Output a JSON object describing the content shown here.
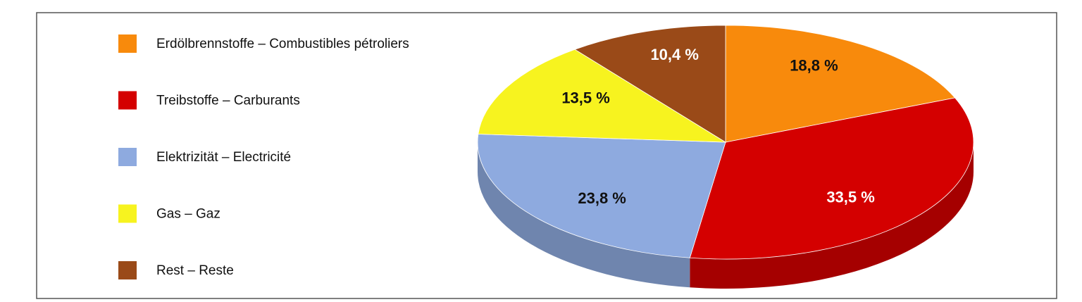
{
  "chart_data": {
    "type": "pie",
    "categories": [
      "Erdölbrennstoffe – Combustibles pétroliers",
      "Treibstoffe – Carburants",
      "Elektrizität – Electricité",
      "Gas – Gaz",
      "Rest – Reste"
    ],
    "values": [
      18.8,
      33.5,
      23.8,
      13.5,
      10.4
    ],
    "value_labels": [
      "18,8 %",
      "33,5 %",
      "23,8 %",
      "13,5 %",
      "10,4 %"
    ],
    "colors": [
      "#f88a0c",
      "#d40000",
      "#8eaadf",
      "#f7f31f",
      "#9a4a18"
    ],
    "legend": "left"
  }
}
